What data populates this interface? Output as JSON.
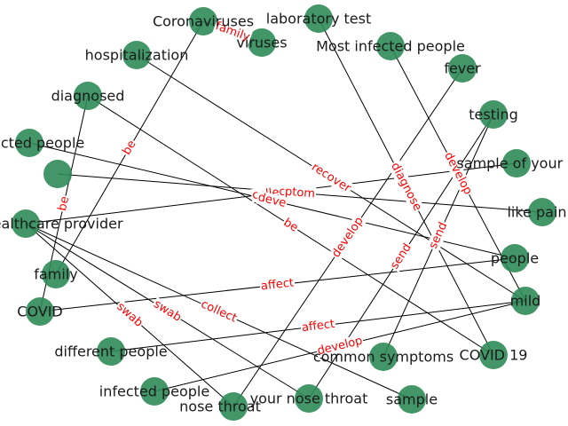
{
  "graph": {
    "nodes": [
      {
        "id": "coronaviruses",
        "label": "Coronaviruses"
      },
      {
        "id": "viruses",
        "label": "viruses"
      },
      {
        "id": "laboratory-test",
        "label": "laboratory test"
      },
      {
        "id": "hospitalization",
        "label": "hospitalization"
      },
      {
        "id": "most-infected-people",
        "label": "Most infected people"
      },
      {
        "id": "fever",
        "label": "fever"
      },
      {
        "id": "diagnosed",
        "label": "diagnosed"
      },
      {
        "id": "testing",
        "label": "testing"
      },
      {
        "id": "infected-people-left",
        "label": "infected people"
      },
      {
        "id": "sample-of-your-saliva",
        "label": "sample of your saliva"
      },
      {
        "id": "ptom",
        "label": ""
      },
      {
        "id": "like-pain",
        "label": "like pain"
      },
      {
        "id": "healthcare-provider",
        "label": "healthcare provider"
      },
      {
        "id": "people",
        "label": "people"
      },
      {
        "id": "family",
        "label": "family"
      },
      {
        "id": "mild",
        "label": "mild"
      },
      {
        "id": "covid",
        "label": "COVID"
      },
      {
        "id": "different-people",
        "label": "different people"
      },
      {
        "id": "common-symptoms",
        "label": "common symptoms"
      },
      {
        "id": "covid-19",
        "label": "COVID 19"
      },
      {
        "id": "infected-people",
        "label": "infected people"
      },
      {
        "id": "nose-throat",
        "label": "nose throat"
      },
      {
        "id": "your-nose-throat",
        "label": "your nose throat"
      },
      {
        "id": "sample",
        "label": "sample"
      }
    ],
    "edges": [
      {
        "source": "coronaviruses",
        "target": "viruses",
        "label": "family"
      },
      {
        "source": "coronaviruses",
        "target": "family",
        "label": "be"
      },
      {
        "source": "diagnosed",
        "target": "covid",
        "label": "be"
      },
      {
        "source": "diagnosed",
        "target": "covid-19",
        "label": "be"
      },
      {
        "source": "hospitalization",
        "target": "mild",
        "label": "recover"
      },
      {
        "source": "laboratory-test",
        "target": "covid-19",
        "label": "diagnose"
      },
      {
        "source": "most-infected-people",
        "target": "mild",
        "label": "develop"
      },
      {
        "source": "fever",
        "target": "nose-throat",
        "label": "develop"
      },
      {
        "source": "testing",
        "target": "your-nose-throat",
        "label": "send"
      },
      {
        "source": "testing",
        "target": "common-symptoms",
        "label": "send"
      },
      {
        "source": "healthcare-provider",
        "target": "sample-of-your-saliva",
        "label": "collect"
      },
      {
        "source": "ptom",
        "target": "like-pain",
        "label": "ptom"
      },
      {
        "source": "infected-people-left",
        "target": "people",
        "label": "deve"
      },
      {
        "source": "covid",
        "target": "people",
        "label": "affect"
      },
      {
        "source": "healthcare-provider",
        "target": "sample",
        "label": "collect"
      },
      {
        "source": "healthcare-provider",
        "target": "nose-throat",
        "label": "swab"
      },
      {
        "source": "healthcare-provider",
        "target": "your-nose-throat",
        "label": "swab"
      },
      {
        "source": "different-people",
        "target": "mild",
        "label": "affect"
      },
      {
        "source": "infected-people",
        "target": "mild",
        "label": "develop"
      }
    ]
  }
}
